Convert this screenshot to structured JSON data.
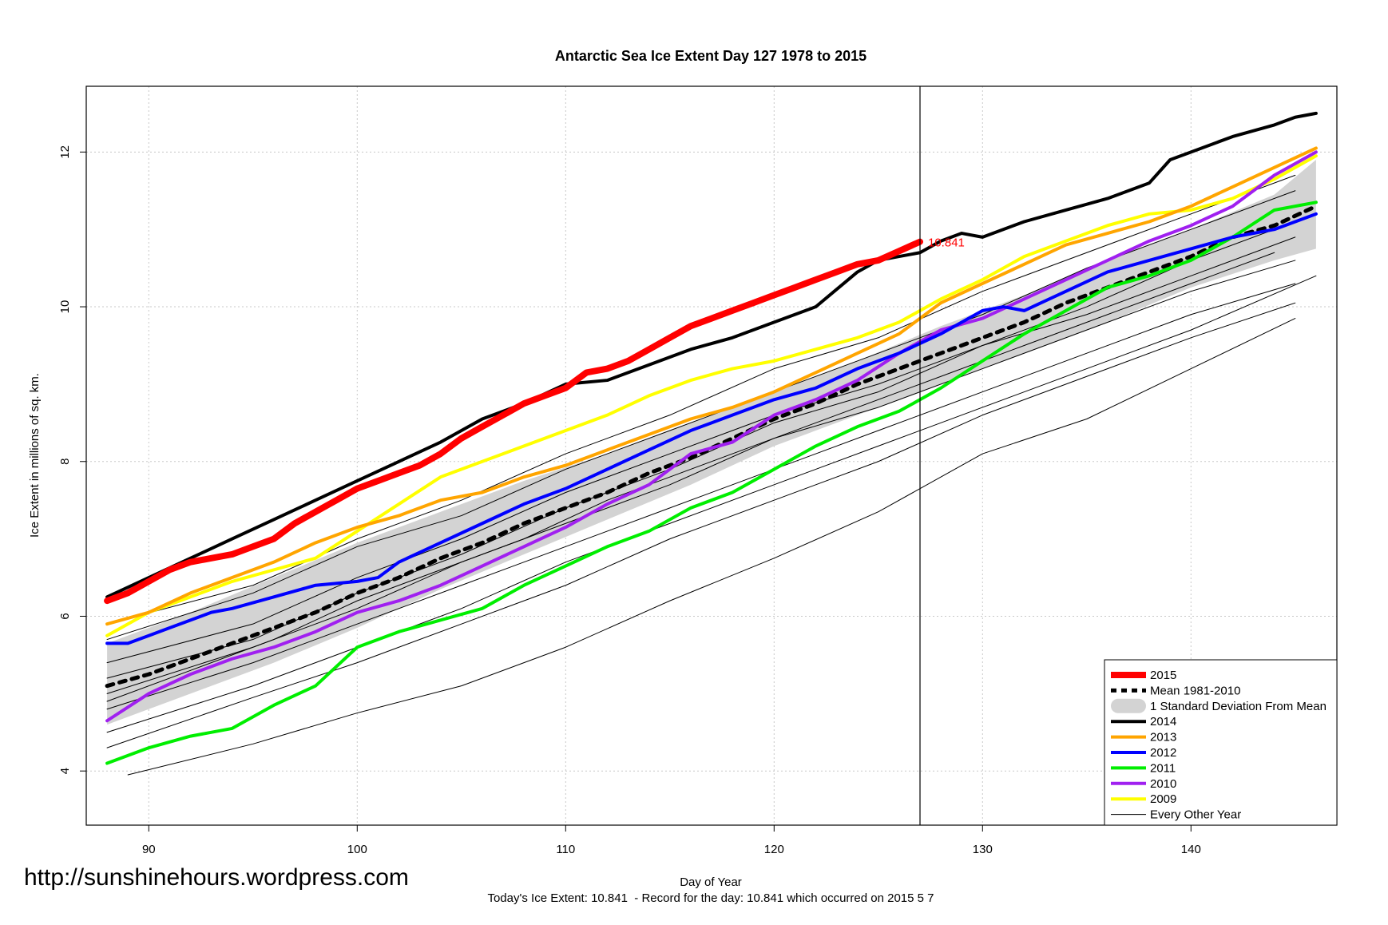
{
  "source_url": "http://sunshinehours.wordpress.com",
  "chart_data": {
    "type": "line",
    "title": "Antarctic Sea Ice Extent Day 127 1978 to 2015",
    "xlabel": "Day of Year",
    "ylabel": "Ice Extent in millions of sq. km.",
    "subtitle": "Today's Ice Extent: 10.841  - Record for the day: 10.841 which occurred on 2015 5 7",
    "xlim": [
      87,
      147
    ],
    "ylim": [
      3.3,
      12.85
    ],
    "x_ticks": [
      90,
      100,
      110,
      120,
      130,
      140
    ],
    "y_ticks": [
      4,
      6,
      8,
      10,
      12
    ],
    "current_day": 127,
    "current_value_label": "10.841",
    "legend_position": "bottom-right",
    "legend": [
      {
        "label": "2015",
        "color": "#ff0000",
        "style": "solid-thick"
      },
      {
        "label": "Mean 1981-2010",
        "color": "#000000",
        "style": "dashed"
      },
      {
        "label": "1 Standard Deviation From Mean",
        "color": "#d3d3d3",
        "style": "band"
      },
      {
        "label": "2014",
        "color": "#000000",
        "style": "solid"
      },
      {
        "label": "2013",
        "color": "#ffa500",
        "style": "solid"
      },
      {
        "label": "2012",
        "color": "#0000ff",
        "style": "solid"
      },
      {
        "label": "2011",
        "color": "#00ee00",
        "style": "solid"
      },
      {
        "label": "2010",
        "color": "#a020f0",
        "style": "solid"
      },
      {
        "label": "2009",
        "color": "#ffff00",
        "style": "solid"
      },
      {
        "label": "Every Other Year",
        "color": "#000000",
        "style": "thin"
      }
    ],
    "std_band": {
      "x": [
        88,
        92,
        96,
        100,
        104,
        108,
        112,
        116,
        120,
        124,
        128,
        132,
        136,
        140,
        144,
        146
      ],
      "upper": [
        5.65,
        6.05,
        6.5,
        6.95,
        7.35,
        7.75,
        8.1,
        8.5,
        8.9,
        9.3,
        9.75,
        10.15,
        10.6,
        11.0,
        11.45,
        11.9
      ],
      "lower": [
        4.6,
        5.0,
        5.4,
        5.85,
        6.35,
        6.8,
        7.25,
        7.7,
        8.2,
        8.6,
        9.0,
        9.4,
        9.8,
        10.25,
        10.6,
        10.75
      ]
    },
    "series": [
      {
        "name": "Every Other Year",
        "color": "#000000",
        "width": 1,
        "x": [
          88,
          95,
          100,
          105,
          110,
          115,
          120,
          125,
          130,
          135,
          140,
          145
        ],
        "y": [
          5.4,
          5.9,
          6.5,
          7.0,
          7.6,
          8.1,
          8.6,
          9.0,
          9.5,
          9.9,
          10.4,
          10.9
        ]
      },
      {
        "name": "Every Other Year",
        "color": "#000000",
        "width": 1,
        "x": [
          88,
          95,
          100,
          105,
          110,
          115,
          120,
          125,
          130,
          135,
          140,
          145
        ],
        "y": [
          5.0,
          5.6,
          6.1,
          6.7,
          7.2,
          7.7,
          8.3,
          8.7,
          9.2,
          9.7,
          10.2,
          10.6
        ]
      },
      {
        "name": "Every Other Year",
        "color": "#000000",
        "width": 1,
        "x": [
          88,
          95,
          100,
          105,
          110,
          115,
          120,
          125,
          130,
          135,
          140,
          145
        ],
        "y": [
          5.7,
          6.3,
          6.9,
          7.3,
          7.9,
          8.4,
          8.9,
          9.4,
          9.9,
          10.5,
          11.0,
          11.5
        ]
      },
      {
        "name": "Every Other Year",
        "color": "#000000",
        "width": 1,
        "x": [
          88,
          95,
          100,
          105,
          110,
          115,
          120,
          125,
          130,
          135,
          140,
          145
        ],
        "y": [
          4.8,
          5.4,
          5.9,
          6.4,
          6.9,
          7.4,
          7.9,
          8.4,
          8.9,
          9.4,
          9.9,
          10.3
        ]
      },
      {
        "name": "Every Other Year",
        "color": "#000000",
        "width": 1,
        "x": [
          88,
          95,
          100,
          105,
          110,
          115,
          120,
          125,
          130,
          135,
          140,
          146
        ],
        "y": [
          5.2,
          5.7,
          6.3,
          6.8,
          7.4,
          7.9,
          8.5,
          8.9,
          9.5,
          10.0,
          10.6,
          11.2
        ]
      },
      {
        "name": "Every Other Year",
        "color": "#000000",
        "width": 1,
        "x": [
          88,
          95,
          100,
          105,
          110,
          115,
          120,
          125,
          130,
          135,
          140,
          146
        ],
        "y": [
          4.5,
          5.1,
          5.6,
          6.1,
          6.7,
          7.2,
          7.7,
          8.2,
          8.7,
          9.2,
          9.7,
          10.4
        ]
      },
      {
        "name": "Every Other Year",
        "color": "#000000",
        "width": 1,
        "x": [
          88,
          95,
          100,
          105,
          110,
          115,
          120,
          125,
          130,
          135,
          140,
          145
        ],
        "y": [
          5.9,
          6.4,
          7.0,
          7.5,
          8.1,
          8.6,
          9.2,
          9.6,
          10.2,
          10.7,
          11.2,
          11.7
        ]
      },
      {
        "name": "Every Other Year",
        "color": "#000000",
        "width": 1,
        "x": [
          88,
          92,
          96,
          100,
          104,
          108,
          112,
          116,
          120,
          124,
          128,
          132,
          136,
          140,
          144
        ],
        "y": [
          4.9,
          5.3,
          5.7,
          6.2,
          6.6,
          7.0,
          7.5,
          7.9,
          8.3,
          8.7,
          9.1,
          9.5,
          9.9,
          10.3,
          10.7
        ]
      },
      {
        "name": "Every Other Year",
        "color": "#000000",
        "width": 1,
        "x": [
          89,
          95,
          100,
          105,
          110,
          115,
          120,
          125,
          130,
          135,
          140,
          145
        ],
        "y": [
          3.95,
          4.35,
          4.75,
          5.1,
          5.6,
          6.2,
          6.75,
          7.35,
          8.1,
          8.55,
          9.2,
          9.85
        ]
      },
      {
        "name": "Every Other Year",
        "color": "#000000",
        "width": 1,
        "x": [
          88,
          95,
          100,
          105,
          110,
          115,
          120,
          125,
          130,
          135,
          140,
          145
        ],
        "y": [
          4.3,
          4.95,
          5.4,
          5.9,
          6.4,
          7.0,
          7.5,
          8.0,
          8.6,
          9.1,
          9.6,
          10.05
        ]
      },
      {
        "name": "Mean 1981-2010",
        "color": "#000000",
        "width": 5,
        "dash": "8,8",
        "x": [
          88,
          90,
          92,
          94,
          96,
          98,
          100,
          102,
          104,
          106,
          108,
          110,
          112,
          114,
          116,
          118,
          120,
          122,
          124,
          126,
          128,
          130,
          132,
          134,
          136,
          138,
          140,
          142,
          144,
          146
        ],
        "y": [
          5.1,
          5.25,
          5.45,
          5.65,
          5.85,
          6.05,
          6.3,
          6.5,
          6.75,
          6.95,
          7.2,
          7.4,
          7.6,
          7.85,
          8.05,
          8.3,
          8.55,
          8.75,
          9.0,
          9.2,
          9.4,
          9.6,
          9.8,
          10.05,
          10.25,
          10.45,
          10.65,
          10.9,
          11.05,
          11.3
        ]
      },
      {
        "name": "2009",
        "color": "#ffff00",
        "width": 4,
        "x": [
          88,
          90,
          92,
          94,
          96,
          98,
          100,
          102,
          104,
          106,
          108,
          110,
          112,
          114,
          116,
          118,
          120,
          122,
          124,
          126,
          128,
          130,
          132,
          134,
          136,
          138,
          140,
          142,
          144,
          146
        ],
        "y": [
          5.75,
          6.05,
          6.25,
          6.45,
          6.6,
          6.75,
          7.1,
          7.45,
          7.8,
          8.0,
          8.2,
          8.4,
          8.6,
          8.85,
          9.05,
          9.2,
          9.3,
          9.45,
          9.6,
          9.8,
          10.1,
          10.35,
          10.65,
          10.85,
          11.05,
          11.2,
          11.25,
          11.4,
          11.65,
          11.95
        ]
      },
      {
        "name": "2010",
        "color": "#a020f0",
        "width": 4,
        "x": [
          88,
          90,
          92,
          94,
          96,
          98,
          100,
          102,
          104,
          106,
          108,
          110,
          112,
          114,
          116,
          118,
          120,
          122,
          124,
          126,
          128,
          130,
          132,
          134,
          136,
          138,
          140,
          142,
          144,
          146
        ],
        "y": [
          4.65,
          5.0,
          5.25,
          5.45,
          5.6,
          5.8,
          6.05,
          6.2,
          6.4,
          6.65,
          6.9,
          7.15,
          7.45,
          7.7,
          8.1,
          8.25,
          8.6,
          8.8,
          9.05,
          9.4,
          9.7,
          9.85,
          10.1,
          10.35,
          10.6,
          10.85,
          11.05,
          11.3,
          11.7,
          12.0
        ]
      },
      {
        "name": "2011",
        "color": "#00ee00",
        "width": 4,
        "x": [
          88,
          90,
          92,
          94,
          96,
          98,
          100,
          102,
          104,
          106,
          108,
          110,
          112,
          114,
          116,
          118,
          120,
          122,
          124,
          126,
          128,
          130,
          132,
          134,
          136,
          138,
          140,
          142,
          144,
          146
        ],
        "y": [
          4.1,
          4.3,
          4.45,
          4.55,
          4.85,
          5.1,
          5.6,
          5.8,
          5.95,
          6.1,
          6.4,
          6.65,
          6.9,
          7.1,
          7.4,
          7.6,
          7.9,
          8.2,
          8.45,
          8.65,
          8.95,
          9.3,
          9.65,
          9.95,
          10.25,
          10.4,
          10.6,
          10.9,
          11.25,
          11.35
        ]
      },
      {
        "name": "2012",
        "color": "#0000ff",
        "width": 4,
        "x": [
          88,
          89,
          90,
          91,
          92,
          93,
          94,
          96,
          98,
          100,
          101,
          102,
          104,
          106,
          108,
          110,
          112,
          114,
          116,
          118,
          120,
          122,
          124,
          126,
          128,
          130,
          131,
          132,
          134,
          136,
          138,
          140,
          142,
          144,
          146
        ],
        "y": [
          5.65,
          5.65,
          5.75,
          5.85,
          5.95,
          6.05,
          6.1,
          6.25,
          6.4,
          6.45,
          6.5,
          6.7,
          6.95,
          7.2,
          7.45,
          7.65,
          7.9,
          8.15,
          8.4,
          8.6,
          8.8,
          8.95,
          9.2,
          9.4,
          9.65,
          9.95,
          10.0,
          9.95,
          10.2,
          10.45,
          10.6,
          10.75,
          10.9,
          11.0,
          11.2
        ]
      },
      {
        "name": "2013",
        "color": "#ffa500",
        "width": 4,
        "x": [
          88,
          90,
          92,
          94,
          96,
          98,
          100,
          102,
          104,
          106,
          108,
          110,
          112,
          114,
          116,
          118,
          120,
          122,
          124,
          126,
          128,
          130,
          132,
          134,
          136,
          138,
          140,
          142,
          144,
          146
        ],
        "y": [
          5.9,
          6.05,
          6.3,
          6.5,
          6.7,
          6.95,
          7.15,
          7.3,
          7.5,
          7.6,
          7.8,
          7.95,
          8.15,
          8.35,
          8.55,
          8.7,
          8.9,
          9.15,
          9.4,
          9.65,
          10.05,
          10.3,
          10.55,
          10.8,
          10.95,
          11.1,
          11.3,
          11.55,
          11.8,
          12.05
        ]
      },
      {
        "name": "2014",
        "color": "#000000",
        "width": 4,
        "x": [
          88,
          90,
          92,
          94,
          96,
          98,
          100,
          102,
          104,
          106,
          108,
          110,
          112,
          114,
          116,
          118,
          120,
          122,
          124,
          125,
          126,
          127,
          128,
          129,
          130,
          132,
          134,
          136,
          138,
          139,
          140,
          142,
          144,
          145,
          146
        ],
        "y": [
          6.25,
          6.5,
          6.75,
          7.0,
          7.25,
          7.5,
          7.75,
          8.0,
          8.25,
          8.55,
          8.75,
          9.0,
          9.05,
          9.25,
          9.45,
          9.6,
          9.8,
          10.0,
          10.45,
          10.6,
          10.65,
          10.7,
          10.85,
          10.95,
          10.9,
          11.1,
          11.25,
          11.4,
          11.6,
          11.9,
          12.0,
          12.2,
          12.35,
          12.45,
          12.5
        ]
      },
      {
        "name": "2015",
        "color": "#ff0000",
        "width": 8,
        "x": [
          88,
          89,
          90,
          91,
          92,
          93,
          94,
          95,
          96,
          97,
          98,
          99,
          100,
          101,
          102,
          103,
          104,
          105,
          106,
          107,
          108,
          109,
          110,
          111,
          112,
          113,
          114,
          115,
          116,
          117,
          118,
          119,
          120,
          121,
          122,
          123,
          124,
          125,
          126,
          127
        ],
        "y": [
          6.2,
          6.3,
          6.45,
          6.6,
          6.7,
          6.75,
          6.8,
          6.9,
          7.0,
          7.2,
          7.35,
          7.5,
          7.65,
          7.75,
          7.85,
          7.95,
          8.1,
          8.3,
          8.45,
          8.6,
          8.75,
          8.85,
          8.95,
          9.15,
          9.2,
          9.3,
          9.45,
          9.6,
          9.75,
          9.85,
          9.95,
          10.05,
          10.15,
          10.25,
          10.35,
          10.45,
          10.55,
          10.6,
          10.72,
          10.841
        ]
      }
    ]
  }
}
